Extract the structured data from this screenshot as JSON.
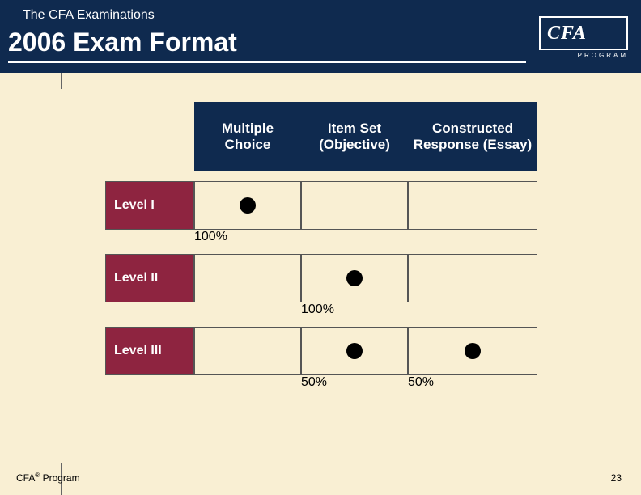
{
  "header": {
    "supertitle": "The CFA Examinations",
    "title": "2006 Exam Format",
    "logo_text": "CFA",
    "logo_sub": "PROGRAM"
  },
  "colors": {
    "header_bg": "#0f2a4f",
    "page_bg": "#f9efd3",
    "rowhead_bg": "#8e2440",
    "text_light": "#ffffff"
  },
  "table": {
    "columns": [
      "Multiple Choice",
      "Item Set (Objective)",
      "Constructed Response (Essay)"
    ],
    "rows": [
      {
        "label": "Level I",
        "dots": [
          true,
          false,
          false
        ],
        "pcts": [
          "100%",
          "",
          ""
        ]
      },
      {
        "label": "Level II",
        "dots": [
          false,
          true,
          false
        ],
        "pcts": [
          "",
          "100%",
          ""
        ]
      },
      {
        "label": "Level III",
        "dots": [
          false,
          true,
          true
        ],
        "pcts": [
          "",
          "50%",
          "50%"
        ]
      }
    ]
  },
  "footer": {
    "left_prefix": "CFA",
    "left_suffix": " Program",
    "reg": "®",
    "page": "23"
  }
}
